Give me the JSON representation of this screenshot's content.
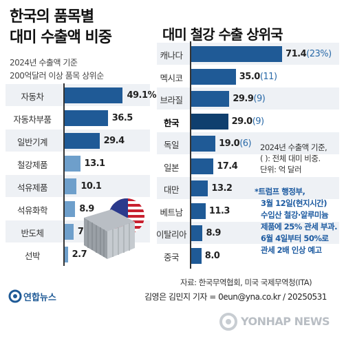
{
  "title_left_line1": "한국의 품목별",
  "title_left_line2": "대미 수출액 비중",
  "subtitle_left_line1": "2024년 수출액 기준",
  "subtitle_left_line2": "200억달러 이상 품목 상위순",
  "title_right": "대미 철강 수출 상위국",
  "note_right": [
    "2024년 수출액 기준,",
    "( ): 전체 대미 비중.",
    "단위: 억 달러"
  ],
  "trump_note": [
    "*트럼프 행정부,",
    "3월 12일(현지시간)",
    "수입산 철강·알루미늄",
    "제품에 25% 관세 부과.",
    "6월 4일부터 50%로",
    "관세 2배 인상 예고"
  ],
  "source": "자료: 한국무역협회, 미국 국제무역청(ITA)",
  "credit": "김영은 김민지 기자 = 0eun@yna.co.kr / 20250531",
  "brand_left": "연합뉴스",
  "brand_right": "YONHAP NEWS",
  "colors": {
    "bar_dark": "#1f5a96",
    "bar_light": "#6e9fcb",
    "highlight": "#0f3f6e"
  },
  "chart_data": [
    {
      "type": "bar",
      "orientation": "horizontal",
      "title": "한국의 품목별 대미 수출액 비중",
      "categories": [
        "자동차",
        "자동차부품",
        "일반기계",
        "철강제품",
        "석유제품",
        "석유화학",
        "반도체",
        "선박"
      ],
      "values": [
        49.1,
        36.5,
        29.4,
        13.1,
        10.1,
        8.9,
        7.5,
        2.7
      ],
      "value_labels": [
        "49.1%",
        "36.5",
        "29.4",
        "13.1",
        "10.1",
        "8.9",
        "7.5",
        "2.7"
      ]
    },
    {
      "type": "bar",
      "orientation": "horizontal",
      "title": "대미 철강 수출 상위국",
      "categories": [
        "캐나다",
        "멕시코",
        "브라질",
        "한국",
        "독일",
        "일본",
        "대만",
        "베트남",
        "이탈리아",
        "중국"
      ],
      "values": [
        71.4,
        35.0,
        29.9,
        29.0,
        19.0,
        17.4,
        13.2,
        11.3,
        8.9,
        8.0
      ],
      "value_labels": [
        "71.4",
        "35.0",
        "29.9",
        "29.0",
        "19.0",
        "17.4",
        "13.2",
        "11.3",
        "8.9",
        "8.0"
      ],
      "shares": [
        "(23%)",
        "(11)",
        "(9)",
        "(9)",
        "(6)",
        "",
        "",
        "",
        "",
        ""
      ],
      "highlight": "한국"
    }
  ]
}
